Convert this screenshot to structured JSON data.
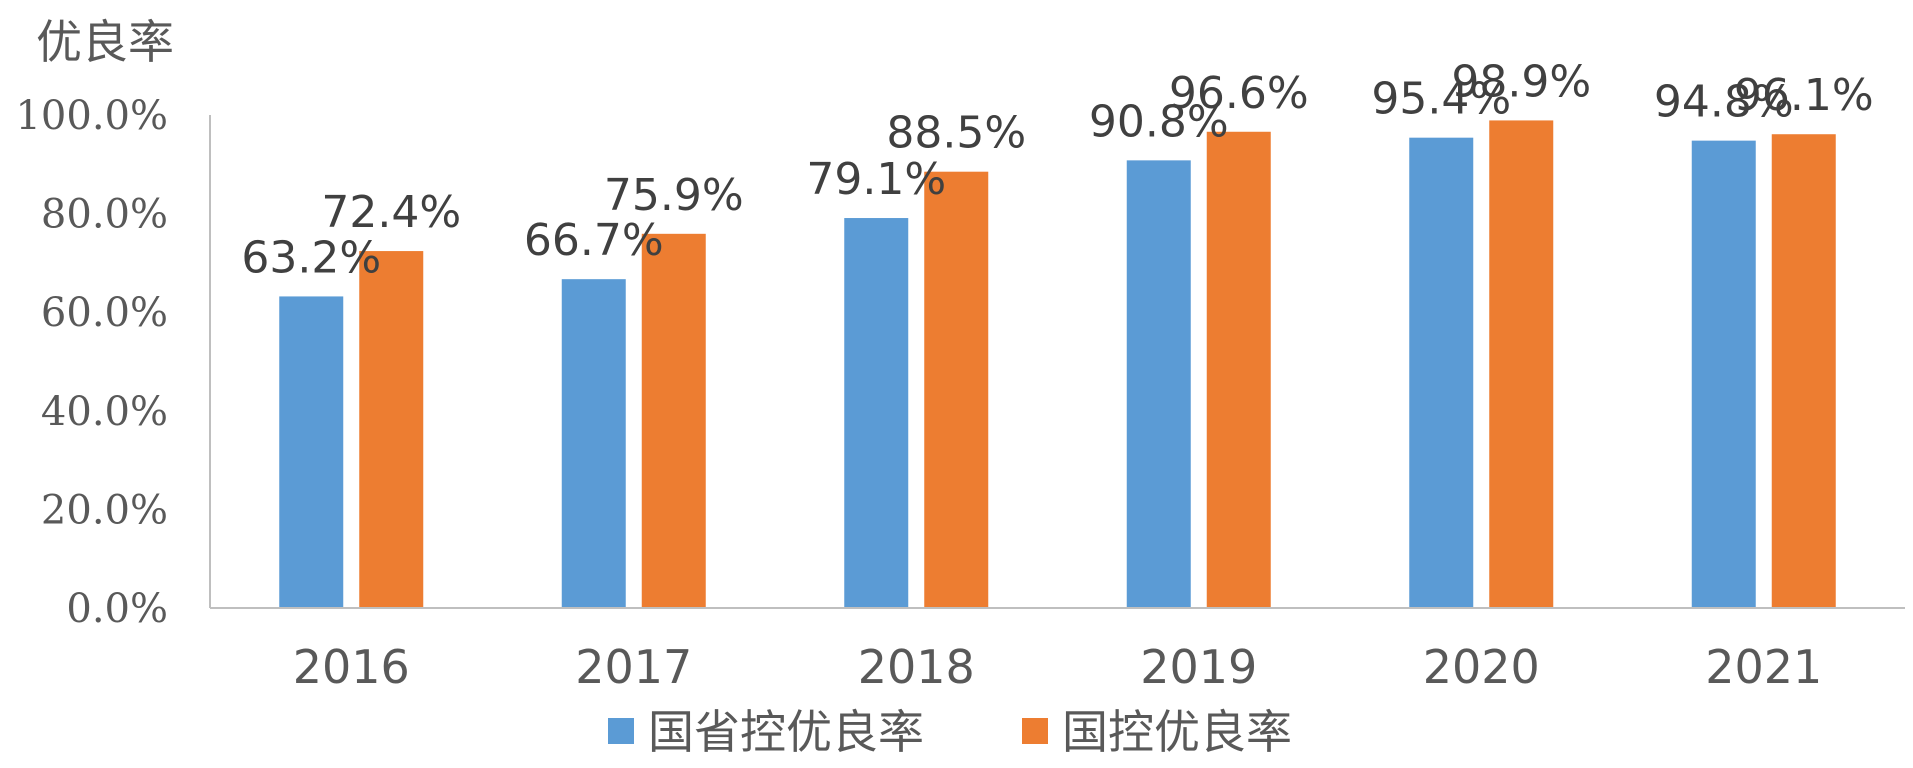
{
  "chart_data": {
    "type": "bar",
    "title": "",
    "ylabel": "优良率",
    "xlabel": "",
    "ylim": [
      0,
      100
    ],
    "y_ticks": [
      "0.0%",
      "20.0%",
      "40.0%",
      "60.0%",
      "80.0%",
      "100.0%"
    ],
    "y_tick_values": [
      0,
      20,
      40,
      60,
      80,
      100
    ],
    "categories": [
      "2016",
      "2017",
      "2018",
      "2019",
      "2020",
      "2021"
    ],
    "series": [
      {
        "name": "国省控优良率",
        "color": "#5B9BD5",
        "values": [
          63.2,
          66.7,
          79.1,
          90.8,
          95.4,
          94.8
        ],
        "labels": [
          "63.2%",
          "66.7%",
          "79.1%",
          "90.8%",
          "95.4%",
          "94.8%"
        ]
      },
      {
        "name": "国控优良率",
        "color": "#ED7D31",
        "values": [
          72.4,
          75.9,
          88.5,
          96.6,
          98.9,
          96.1
        ],
        "labels": [
          "72.4%",
          "75.9%",
          "88.5%",
          "96.6%",
          "98.9%",
          "96.1%"
        ]
      }
    ],
    "grid": false,
    "legend_position": "bottom"
  }
}
